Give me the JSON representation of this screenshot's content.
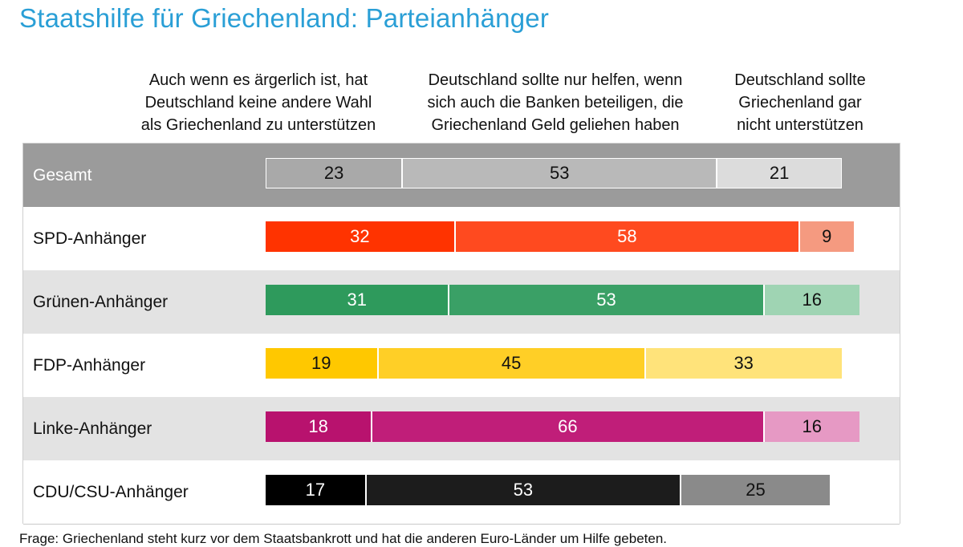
{
  "title": "Staatshilfe für Griechenland: Parteianhänger",
  "column_headers": [
    "Auch wenn es ärgerlich ist, hat\nDeutschland keine andere Wahl\nals Griechenland zu unterstützen",
    "Deutschland sollte nur helfen, wenn\nsich auch die Banken beteiligen, die\nGriechenland Geld geliehen haben",
    "Deutschland sollte\nGriechenland gar\nnicht unterstützen"
  ],
  "footnote": "Frage: Griechenland steht kurz vor dem Staatsbankrott und hat die anderen Euro-Länder um Hilfe gebeten.",
  "chart_data": {
    "type": "bar",
    "stacked": true,
    "orientation": "horizontal",
    "title": "Staatshilfe für Griechenland: Parteianhänger",
    "categories": [
      "Gesamt",
      "SPD-Anhänger",
      "Grünen-Anhänger",
      "FDP-Anhänger",
      "Linke-Anhänger",
      "CDU/CSU-Anhänger"
    ],
    "series": [
      {
        "name": "Auch wenn es ärgerlich ist, hat Deutschland keine andere Wahl als Griechenland zu unterstützen",
        "values": [
          23,
          32,
          31,
          19,
          18,
          17
        ]
      },
      {
        "name": "Deutschland sollte nur helfen, wenn sich auch die Banken beteiligen, die Griechenland Geld geliehen haben",
        "values": [
          53,
          58,
          53,
          45,
          66,
          53
        ]
      },
      {
        "name": "Deutschland sollte Griechenland gar nicht unterstützen",
        "values": [
          21,
          9,
          16,
          33,
          16,
          25
        ]
      }
    ],
    "row_colors": [
      [
        "#a9a9a9",
        "#b9b9b9",
        "#dcdcdc"
      ],
      [
        "#ff3300",
        "#ff4a1f",
        "#f59a80"
      ],
      [
        "#2e9a5c",
        "#3aa066",
        "#9fd4b3"
      ],
      [
        "#ffc800",
        "#ffcf26",
        "#ffe37a"
      ],
      [
        "#b8126e",
        "#c01e79",
        "#e699c4"
      ],
      [
        "#000000",
        "#1c1c1c",
        "#8a8a8a"
      ]
    ],
    "row_text_colors": [
      [
        "#111111",
        "#111111",
        "#111111"
      ],
      [
        "#ffffff",
        "#ffffff",
        "#111111"
      ],
      [
        "#ffffff",
        "#ffffff",
        "#111111"
      ],
      [
        "#111111",
        "#111111",
        "#111111"
      ],
      [
        "#ffffff",
        "#ffffff",
        "#111111"
      ],
      [
        "#ffffff",
        "#ffffff",
        "#111111"
      ]
    ],
    "row_backgrounds": [
      "#9b9b9b",
      "#ffffff",
      "#e3e3e3",
      "#ffffff",
      "#e3e3e3",
      "#ffffff"
    ],
    "xlim": [
      0,
      100
    ]
  }
}
